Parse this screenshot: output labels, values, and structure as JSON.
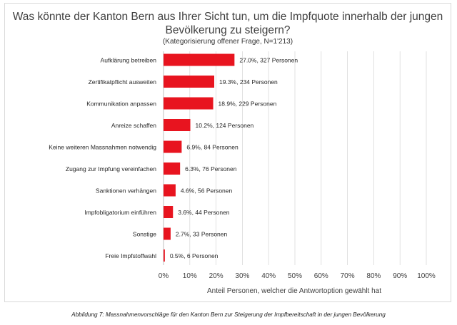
{
  "chart_data": {
    "type": "bar",
    "orientation": "horizontal",
    "title": "Was könnte der Kanton Bern aus Ihrer Sicht tun, um die Impfquote innerhalb der jungen Bevölkerung zu steigern?",
    "subtitle": "(Kategorisierung offener Frage, N=1'213)",
    "xlabel": "Anteil Personen, welcher die Antwortoption gewählt hat",
    "ylabel": "",
    "xlim": [
      0,
      100
    ],
    "xticks": [
      "0%",
      "10%",
      "20%",
      "30%",
      "40%",
      "50%",
      "60%",
      "70%",
      "80%",
      "90%",
      "100%"
    ],
    "grid": true,
    "bar_color": "#e8141f",
    "categories": [
      "Aufklärung betreiben",
      "Zertifikatpflicht ausweiten",
      "Kommunikation anpassen",
      "Anreize schaffen",
      "Keine weiteren Massnahmen notwendig",
      "Zugang zur Impfung vereinfachen",
      "Sanktionen verhängen",
      "Impfobligatorium einführen",
      "Sonstige",
      "Freie Impfstoffwahl"
    ],
    "values": [
      27.0,
      19.3,
      18.9,
      10.2,
      6.9,
      6.3,
      4.6,
      3.6,
      2.7,
      0.5
    ],
    "data_labels": [
      "27.0%, 327 Personen",
      "19.3%, 234 Personen",
      "18.9%, 229 Personen",
      "10.2%, 124 Personen",
      "6.9%, 84 Personen",
      "6.3%, 76 Personen",
      "4.6%, 56 Personen",
      "3.6%, 44 Personen",
      "2.7%, 33 Personen",
      "0.5%, 6 Personen"
    ]
  },
  "caption": "Abbildung 7: Massnahmenvorschläge für den Kanton Bern zur Steigerung der Impfbereitschaft in der jungen Bevölkerung"
}
